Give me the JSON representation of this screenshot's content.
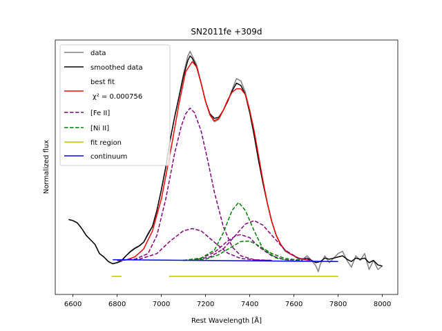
{
  "chart_data": {
    "type": "line",
    "title": "SN2011fe  +309d",
    "xlabel": "Rest Wavelength [Å]",
    "ylabel": "Normalized flux",
    "xlim": [
      6520,
      8070
    ],
    "ylim": [
      -0.12,
      1.0
    ],
    "xticks": [
      6600,
      6800,
      7000,
      7200,
      7400,
      7600,
      7800,
      8000
    ],
    "yticks_shown": false,
    "legend_position": "top-left",
    "legend": [
      {
        "key": "data",
        "label": "data",
        "color": "#808080",
        "style": "solid"
      },
      {
        "key": "smoothed",
        "label": "smoothed data",
        "color": "#000000",
        "style": "solid"
      },
      {
        "key": "best_fit",
        "label": "best fit",
        "label2": "χ² =  0.000756",
        "color": "#ff0000",
        "style": "solid"
      },
      {
        "key": "fe",
        "label": "[Fe II]",
        "color": "#800080",
        "style": "dashed"
      },
      {
        "key": "ni",
        "label": "[Ni II]",
        "color": "#008000",
        "style": "dashed"
      },
      {
        "key": "fit_region",
        "label": "fit region",
        "color": "#bfbf00",
        "style": "solid"
      },
      {
        "key": "continuum",
        "label": "continuum",
        "color": "#0000ff",
        "style": "solid"
      }
    ],
    "series": [
      {
        "name": "data",
        "color": "#808080",
        "width": 1.5,
        "points": [
          [
            6580,
            0.21
          ],
          [
            6600,
            0.205
          ],
          [
            6620,
            0.195
          ],
          [
            6640,
            0.17
          ],
          [
            6660,
            0.14
          ],
          [
            6680,
            0.12
          ],
          [
            6700,
            0.1
          ],
          [
            6720,
            0.06
          ],
          [
            6740,
            0.045
          ],
          [
            6760,
            0.025
          ],
          [
            6780,
            0.015
          ],
          [
            6800,
            0.02
          ],
          [
            6820,
            0.025
          ],
          [
            6840,
            0.05
          ],
          [
            6860,
            0.07
          ],
          [
            6880,
            0.085
          ],
          [
            6900,
            0.095
          ],
          [
            6920,
            0.11
          ],
          [
            6940,
            0.15
          ],
          [
            6960,
            0.18
          ],
          [
            6980,
            0.25
          ],
          [
            7000,
            0.34
          ],
          [
            7020,
            0.44
          ],
          [
            7040,
            0.56
          ],
          [
            7060,
            0.66
          ],
          [
            7080,
            0.75
          ],
          [
            7100,
            0.85
          ],
          [
            7120,
            0.93
          ],
          [
            7130,
            0.95
          ],
          [
            7140,
            0.93
          ],
          [
            7160,
            0.89
          ],
          [
            7180,
            0.81
          ],
          [
            7200,
            0.73
          ],
          [
            7220,
            0.67
          ],
          [
            7240,
            0.64
          ],
          [
            7260,
            0.65
          ],
          [
            7280,
            0.69
          ],
          [
            7300,
            0.73
          ],
          [
            7320,
            0.78
          ],
          [
            7340,
            0.83
          ],
          [
            7360,
            0.82
          ],
          [
            7380,
            0.77
          ],
          [
            7400,
            0.69
          ],
          [
            7420,
            0.58
          ],
          [
            7440,
            0.47
          ],
          [
            7460,
            0.37
          ],
          [
            7480,
            0.28
          ],
          [
            7500,
            0.2
          ],
          [
            7520,
            0.14
          ],
          [
            7540,
            0.1
          ],
          [
            7560,
            0.07
          ],
          [
            7580,
            0.06
          ],
          [
            7600,
            0.05
          ],
          [
            7620,
            0.035
          ],
          [
            7640,
            0.035
          ],
          [
            7660,
            0.05
          ],
          [
            7680,
            0.03
          ],
          [
            7700,
            0.005
          ],
          [
            7710,
            -0.02
          ],
          [
            7720,
            0.015
          ],
          [
            7740,
            0.05
          ],
          [
            7760,
            0.02
          ],
          [
            7780,
            0.04
          ],
          [
            7800,
            0.06
          ],
          [
            7820,
            0.07
          ],
          [
            7840,
            0.03
          ],
          [
            7860,
            0.0
          ],
          [
            7880,
            0.05
          ],
          [
            7900,
            0.03
          ],
          [
            7920,
            0.06
          ],
          [
            7940,
            -0.01
          ],
          [
            7960,
            0.03
          ],
          [
            7980,
            -0.01
          ],
          [
            8000,
            0.005
          ]
        ]
      },
      {
        "name": "smoothed data",
        "color": "#000000",
        "width": 1.5,
        "points": [
          [
            6580,
            0.21
          ],
          [
            6600,
            0.205
          ],
          [
            6620,
            0.195
          ],
          [
            6640,
            0.17
          ],
          [
            6660,
            0.14
          ],
          [
            6680,
            0.12
          ],
          [
            6700,
            0.1
          ],
          [
            6720,
            0.06
          ],
          [
            6740,
            0.045
          ],
          [
            6760,
            0.025
          ],
          [
            6780,
            0.015
          ],
          [
            6800,
            0.02
          ],
          [
            6820,
            0.03
          ],
          [
            6840,
            0.05
          ],
          [
            6860,
            0.068
          ],
          [
            6880,
            0.082
          ],
          [
            6900,
            0.093
          ],
          [
            6920,
            0.11
          ],
          [
            6940,
            0.145
          ],
          [
            6960,
            0.18
          ],
          [
            6980,
            0.25
          ],
          [
            7000,
            0.34
          ],
          [
            7020,
            0.44
          ],
          [
            7040,
            0.56
          ],
          [
            7060,
            0.66
          ],
          [
            7080,
            0.75
          ],
          [
            7100,
            0.84
          ],
          [
            7120,
            0.91
          ],
          [
            7130,
            0.93
          ],
          [
            7140,
            0.92
          ],
          [
            7160,
            0.88
          ],
          [
            7180,
            0.81
          ],
          [
            7200,
            0.73
          ],
          [
            7220,
            0.675
          ],
          [
            7240,
            0.655
          ],
          [
            7260,
            0.66
          ],
          [
            7280,
            0.69
          ],
          [
            7300,
            0.73
          ],
          [
            7320,
            0.775
          ],
          [
            7340,
            0.81
          ],
          [
            7360,
            0.8
          ],
          [
            7380,
            0.76
          ],
          [
            7400,
            0.68
          ],
          [
            7420,
            0.58
          ],
          [
            7440,
            0.47
          ],
          [
            7460,
            0.37
          ],
          [
            7480,
            0.28
          ],
          [
            7500,
            0.2
          ],
          [
            7520,
            0.14
          ],
          [
            7540,
            0.1
          ],
          [
            7560,
            0.075
          ],
          [
            7580,
            0.06
          ],
          [
            7600,
            0.05
          ],
          [
            7620,
            0.04
          ],
          [
            7640,
            0.035
          ],
          [
            7660,
            0.04
          ],
          [
            7680,
            0.03
          ],
          [
            7700,
            0.02
          ],
          [
            7720,
            0.025
          ],
          [
            7740,
            0.04
          ],
          [
            7760,
            0.035
          ],
          [
            7780,
            0.04
          ],
          [
            7800,
            0.045
          ],
          [
            7820,
            0.05
          ],
          [
            7840,
            0.035
          ],
          [
            7860,
            0.025
          ],
          [
            7880,
            0.04
          ],
          [
            7900,
            0.035
          ],
          [
            7920,
            0.04
          ],
          [
            7940,
            0.02
          ],
          [
            7960,
            0.03
          ],
          [
            7980,
            0.01
          ],
          [
            8000,
            0.005
          ]
        ]
      },
      {
        "name": "best fit",
        "color": "#ff0000",
        "width": 1.5,
        "points": [
          [
            6800,
            0.03
          ],
          [
            6840,
            0.032
          ],
          [
            6880,
            0.045
          ],
          [
            6920,
            0.08
          ],
          [
            6960,
            0.16
          ],
          [
            7000,
            0.3
          ],
          [
            7040,
            0.5
          ],
          [
            7080,
            0.72
          ],
          [
            7110,
            0.86
          ],
          [
            7140,
            0.905
          ],
          [
            7160,
            0.88
          ],
          [
            7180,
            0.81
          ],
          [
            7200,
            0.73
          ],
          [
            7220,
            0.67
          ],
          [
            7240,
            0.645
          ],
          [
            7260,
            0.655
          ],
          [
            7280,
            0.69
          ],
          [
            7300,
            0.735
          ],
          [
            7320,
            0.77
          ],
          [
            7340,
            0.785
          ],
          [
            7360,
            0.785
          ],
          [
            7380,
            0.76
          ],
          [
            7400,
            0.69
          ],
          [
            7420,
            0.6
          ],
          [
            7440,
            0.49
          ],
          [
            7460,
            0.38
          ],
          [
            7480,
            0.28
          ],
          [
            7500,
            0.2
          ],
          [
            7520,
            0.14
          ],
          [
            7540,
            0.1
          ],
          [
            7560,
            0.075
          ],
          [
            7580,
            0.06
          ],
          [
            7600,
            0.05
          ],
          [
            7620,
            0.04
          ],
          [
            7640,
            0.035
          ],
          [
            7660,
            0.032
          ],
          [
            7680,
            0.03
          ]
        ]
      },
      {
        "name": "[Fe II] 1",
        "color": "#800080",
        "width": 1.5,
        "dashed": true,
        "points": [
          [
            6800,
            0.03
          ],
          [
            6880,
            0.035
          ],
          [
            6940,
            0.06
          ],
          [
            6980,
            0.14
          ],
          [
            7020,
            0.3
          ],
          [
            7060,
            0.5
          ],
          [
            7090,
            0.62
          ],
          [
            7110,
            0.675
          ],
          [
            7130,
            0.7
          ],
          [
            7150,
            0.68
          ],
          [
            7180,
            0.6
          ],
          [
            7210,
            0.47
          ],
          [
            7240,
            0.33
          ],
          [
            7280,
            0.18
          ],
          [
            7320,
            0.09
          ],
          [
            7360,
            0.05
          ],
          [
            7420,
            0.033
          ],
          [
            7500,
            0.03
          ]
        ]
      },
      {
        "name": "[Fe II] 2",
        "color": "#800080",
        "width": 1.5,
        "dashed": true,
        "points": [
          [
            6800,
            0.03
          ],
          [
            6900,
            0.035
          ],
          [
            6980,
            0.06
          ],
          [
            7040,
            0.115
          ],
          [
            7100,
            0.16
          ],
          [
            7140,
            0.17
          ],
          [
            7180,
            0.16
          ],
          [
            7240,
            0.11
          ],
          [
            7300,
            0.062
          ],
          [
            7360,
            0.038
          ],
          [
            7440,
            0.031
          ],
          [
            7500,
            0.03
          ]
        ]
      },
      {
        "name": "[Fe II] 3",
        "color": "#800080",
        "width": 1.5,
        "dashed": true,
        "points": [
          [
            7100,
            0.03
          ],
          [
            7180,
            0.04
          ],
          [
            7240,
            0.065
          ],
          [
            7300,
            0.115
          ],
          [
            7340,
            0.14
          ],
          [
            7360,
            0.143
          ],
          [
            7400,
            0.13
          ],
          [
            7440,
            0.09
          ],
          [
            7500,
            0.05
          ],
          [
            7560,
            0.033
          ],
          [
            7640,
            0.03
          ]
        ]
      },
      {
        "name": "[Fe II] 4",
        "color": "#800080",
        "width": 1.5,
        "dashed": true,
        "points": [
          [
            7140,
            0.03
          ],
          [
            7220,
            0.045
          ],
          [
            7280,
            0.08
          ],
          [
            7340,
            0.145
          ],
          [
            7380,
            0.19
          ],
          [
            7420,
            0.205
          ],
          [
            7460,
            0.185
          ],
          [
            7500,
            0.14
          ],
          [
            7560,
            0.075
          ],
          [
            7620,
            0.04
          ],
          [
            7680,
            0.03
          ]
        ]
      },
      {
        "name": "[Ni II] 1",
        "color": "#008000",
        "width": 1.5,
        "dashed": true,
        "points": [
          [
            7100,
            0.03
          ],
          [
            7180,
            0.04
          ],
          [
            7240,
            0.075
          ],
          [
            7280,
            0.15
          ],
          [
            7320,
            0.25
          ],
          [
            7350,
            0.285
          ],
          [
            7380,
            0.25
          ],
          [
            7420,
            0.16
          ],
          [
            7460,
            0.08
          ],
          [
            7520,
            0.04
          ],
          [
            7580,
            0.03
          ]
        ]
      },
      {
        "name": "[Ni II] 2",
        "color": "#008000",
        "width": 1.5,
        "dashed": true,
        "points": [
          [
            7100,
            0.03
          ],
          [
            7200,
            0.035
          ],
          [
            7260,
            0.055
          ],
          [
            7320,
            0.09
          ],
          [
            7360,
            0.113
          ],
          [
            7400,
            0.115
          ],
          [
            7440,
            0.095
          ],
          [
            7500,
            0.06
          ],
          [
            7560,
            0.038
          ],
          [
            7640,
            0.03
          ]
        ]
      },
      {
        "name": "continuum",
        "color": "#0000ff",
        "width": 1.5,
        "points": [
          [
            6780,
            0.033
          ],
          [
            7800,
            0.025
          ]
        ]
      }
    ],
    "fit_region": {
      "color": "#bfbf00",
      "y": -0.04,
      "segments": [
        [
          6775,
          6820
        ],
        [
          7035,
          7800
        ]
      ]
    }
  }
}
